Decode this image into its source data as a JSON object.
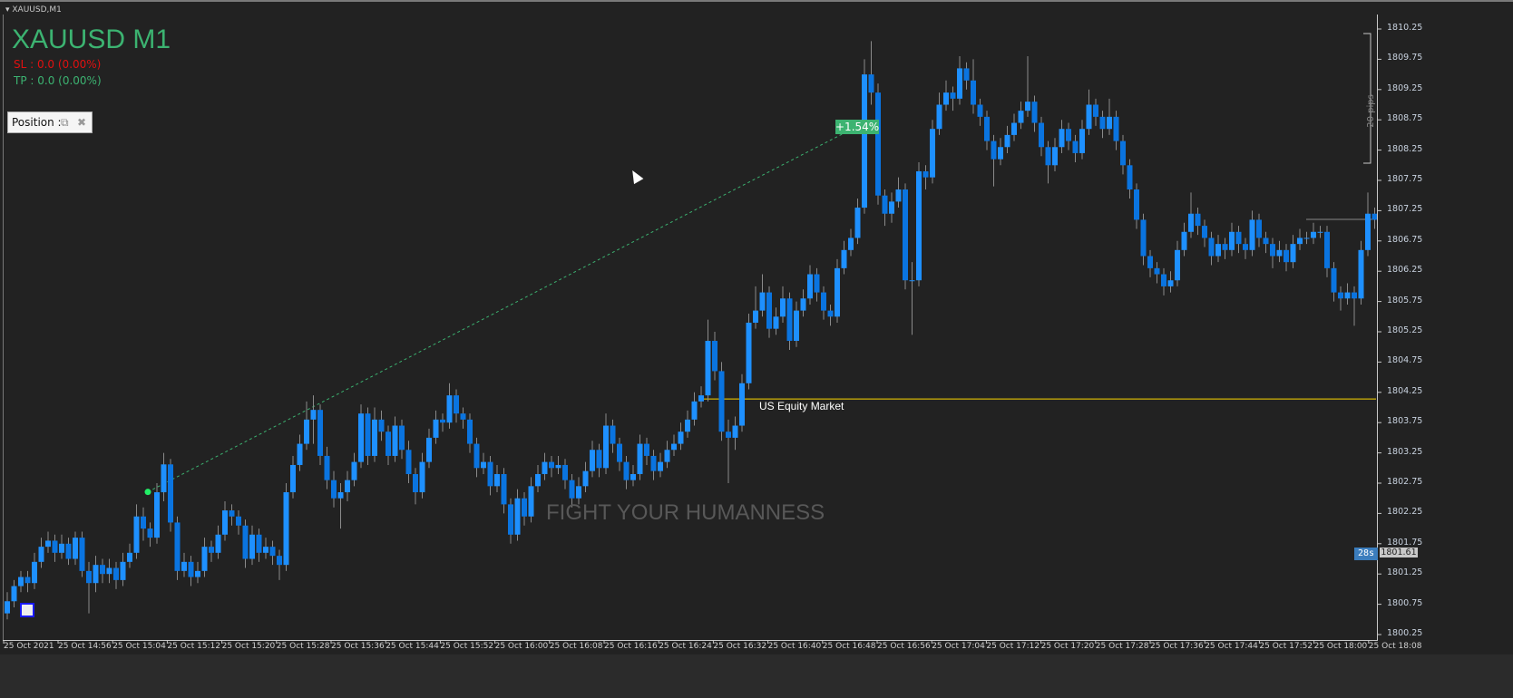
{
  "window": {
    "title": "XAUUSD,M1"
  },
  "overlay": {
    "symbol_title": "XAUUSD M1",
    "sl_text": "SL : 0.0 (0.00%)",
    "tp_text": "TP : 0.0 (0.00%)",
    "position_panel_label": "Position :",
    "watermark": "FIGHT YOUR HUMANNESS",
    "trade_change_label": "+1.54%",
    "pips_ruler_label": "20 pips",
    "countdown_badge": "28s",
    "price_tag": "1801.61",
    "equity_line_label": "US Equity Market"
  },
  "colors": {
    "background": "#222222",
    "bull": "#1e90ff",
    "bear": "#0a74e0",
    "wick": "#8a8a8a",
    "equity_line": "#ffd700",
    "trade_line": "#3cb371",
    "sl": "#e01010",
    "tp": "#3cb371"
  },
  "chart_data": {
    "type": "candlestick",
    "symbol": "XAUUSD",
    "timeframe": "M1",
    "ylim": [
      1800.25,
      1810.25
    ],
    "y_ticks": [
      "1810.25",
      "1809.75",
      "1809.25",
      "1808.75",
      "1808.25",
      "1807.75",
      "1807.25",
      "1806.75",
      "1806.25",
      "1805.75",
      "1805.25",
      "1804.75",
      "1804.25",
      "1803.75",
      "1803.25",
      "1802.75",
      "1802.25",
      "1801.75",
      "1801.25",
      "1800.75",
      "1800.25"
    ],
    "x_ticks": [
      "25 Oct 2021",
      "25 Oct 14:56",
      "25 Oct 15:04",
      "25 Oct 15:12",
      "25 Oct 15:20",
      "25 Oct 15:28",
      "25 Oct 15:36",
      "25 Oct 15:44",
      "25 Oct 15:52",
      "25 Oct 16:00",
      "25 Oct 16:08",
      "25 Oct 16:16",
      "25 Oct 16:24",
      "25 Oct 16:32",
      "25 Oct 16:40",
      "25 Oct 16:48",
      "25 Oct 16:56",
      "25 Oct 17:04",
      "25 Oct 17:12",
      "25 Oct 17:20",
      "25 Oct 17:28",
      "25 Oct 17:36",
      "25 Oct 17:44",
      "25 Oct 17:52",
      "25 Oct 18:00",
      "25 Oct 18:08"
    ],
    "equity_market_level": 1804.14,
    "trade_line": {
      "from_price": 1802.65,
      "to_price": 1808.7
    },
    "ohlc": [
      [
        1800.6,
        1800.95,
        1800.5,
        1800.8
      ],
      [
        1800.8,
        1801.15,
        1800.7,
        1801.05
      ],
      [
        1801.05,
        1801.3,
        1800.95,
        1801.2
      ],
      [
        1801.2,
        1801.3,
        1800.95,
        1801.1
      ],
      [
        1801.1,
        1801.6,
        1801.0,
        1801.45
      ],
      [
        1801.45,
        1801.85,
        1801.35,
        1801.7
      ],
      [
        1801.7,
        1801.95,
        1801.6,
        1801.8
      ],
      [
        1801.8,
        1801.9,
        1801.45,
        1801.6
      ],
      [
        1801.6,
        1801.9,
        1801.5,
        1801.75
      ],
      [
        1801.75,
        1801.85,
        1801.4,
        1801.5
      ],
      [
        1801.5,
        1801.95,
        1801.4,
        1801.85
      ],
      [
        1801.85,
        1801.95,
        1801.2,
        1801.3
      ],
      [
        1801.3,
        1801.45,
        1800.6,
        1801.1
      ],
      [
        1801.1,
        1801.55,
        1800.95,
        1801.4
      ],
      [
        1801.4,
        1801.5,
        1801.1,
        1801.25
      ],
      [
        1801.25,
        1801.5,
        1801.1,
        1801.35
      ],
      [
        1801.35,
        1801.45,
        1801.0,
        1801.15
      ],
      [
        1801.15,
        1801.6,
        1801.05,
        1801.45
      ],
      [
        1801.45,
        1801.75,
        1801.35,
        1801.6
      ],
      [
        1801.6,
        1802.4,
        1801.5,
        1802.2
      ],
      [
        1802.2,
        1802.35,
        1801.8,
        1802.0
      ],
      [
        1802.0,
        1802.1,
        1801.7,
        1801.85
      ],
      [
        1801.85,
        1802.75,
        1801.75,
        1802.6
      ],
      [
        1802.6,
        1803.25,
        1802.45,
        1803.06
      ],
      [
        1803.06,
        1803.15,
        1801.95,
        1802.1
      ],
      [
        1802.1,
        1802.2,
        1801.15,
        1801.3
      ],
      [
        1801.3,
        1801.6,
        1801.2,
        1801.45
      ],
      [
        1801.45,
        1801.55,
        1801.05,
        1801.2
      ],
      [
        1801.2,
        1801.45,
        1801.1,
        1801.3
      ],
      [
        1801.3,
        1801.85,
        1801.2,
        1801.7
      ],
      [
        1801.7,
        1801.8,
        1801.45,
        1801.6
      ],
      [
        1801.6,
        1802.05,
        1801.5,
        1801.9
      ],
      [
        1801.9,
        1802.45,
        1801.8,
        1802.3
      ],
      [
        1802.3,
        1802.4,
        1802.05,
        1802.2
      ],
      [
        1802.2,
        1802.3,
        1801.9,
        1802.05
      ],
      [
        1802.05,
        1802.15,
        1801.35,
        1801.5
      ],
      [
        1801.5,
        1802.05,
        1801.4,
        1801.9
      ],
      [
        1801.9,
        1802.0,
        1801.45,
        1801.6
      ],
      [
        1801.6,
        1801.85,
        1801.5,
        1801.7
      ],
      [
        1801.7,
        1801.8,
        1801.4,
        1801.55
      ],
      [
        1801.55,
        1801.65,
        1801.15,
        1801.4
      ],
      [
        1801.4,
        1802.75,
        1801.3,
        1802.6
      ],
      [
        1802.6,
        1803.2,
        1802.5,
        1803.05
      ],
      [
        1803.05,
        1803.55,
        1802.95,
        1803.4
      ],
      [
        1803.4,
        1804.1,
        1803.3,
        1803.8
      ],
      [
        1803.8,
        1804.2,
        1803.4,
        1803.96
      ],
      [
        1803.96,
        1804.05,
        1803.05,
        1803.2
      ],
      [
        1803.2,
        1803.35,
        1802.65,
        1802.8
      ],
      [
        1802.8,
        1802.95,
        1802.35,
        1802.5
      ],
      [
        1802.5,
        1802.75,
        1802.0,
        1802.6
      ],
      [
        1802.6,
        1802.95,
        1802.45,
        1802.8
      ],
      [
        1802.8,
        1803.25,
        1802.7,
        1803.1
      ],
      [
        1803.1,
        1804.05,
        1803.0,
        1803.9
      ],
      [
        1803.9,
        1804.0,
        1803.05,
        1803.2
      ],
      [
        1803.2,
        1804.0,
        1803.1,
        1803.8
      ],
      [
        1803.8,
        1803.95,
        1803.45,
        1803.6
      ],
      [
        1803.6,
        1803.7,
        1803.05,
        1803.2
      ],
      [
        1803.2,
        1803.85,
        1803.1,
        1803.7
      ],
      [
        1803.7,
        1803.8,
        1803.15,
        1803.3
      ],
      [
        1803.3,
        1803.45,
        1802.75,
        1802.9
      ],
      [
        1802.9,
        1803.0,
        1802.4,
        1802.6
      ],
      [
        1802.6,
        1803.25,
        1802.5,
        1803.1
      ],
      [
        1803.1,
        1803.65,
        1803.0,
        1803.5
      ],
      [
        1803.5,
        1803.95,
        1803.4,
        1803.8
      ],
      [
        1803.8,
        1803.9,
        1803.6,
        1803.75
      ],
      [
        1803.75,
        1804.4,
        1803.65,
        1804.2
      ],
      [
        1804.2,
        1804.3,
        1803.75,
        1803.9
      ],
      [
        1803.9,
        1804.0,
        1803.65,
        1803.8
      ],
      [
        1803.8,
        1803.9,
        1803.25,
        1803.4
      ],
      [
        1803.4,
        1803.5,
        1802.85,
        1803.0
      ],
      [
        1803.0,
        1803.25,
        1802.9,
        1803.1
      ],
      [
        1803.1,
        1803.2,
        1802.55,
        1802.7
      ],
      [
        1802.7,
        1803.05,
        1802.6,
        1802.9
      ],
      [
        1802.9,
        1803.0,
        1802.25,
        1802.4
      ],
      [
        1802.4,
        1802.5,
        1801.75,
        1801.9
      ],
      [
        1801.9,
        1802.65,
        1801.8,
        1802.5
      ],
      [
        1802.5,
        1802.6,
        1802.05,
        1802.2
      ],
      [
        1802.2,
        1802.85,
        1802.1,
        1802.7
      ],
      [
        1802.7,
        1803.05,
        1802.6,
        1802.9
      ],
      [
        1802.9,
        1803.25,
        1802.8,
        1803.1
      ],
      [
        1803.1,
        1803.2,
        1802.85,
        1803.0
      ],
      [
        1803.0,
        1803.2,
        1802.9,
        1803.05
      ],
      [
        1803.05,
        1803.15,
        1802.65,
        1802.8
      ],
      [
        1802.8,
        1802.9,
        1802.35,
        1802.5
      ],
      [
        1802.5,
        1802.85,
        1802.4,
        1802.7
      ],
      [
        1802.7,
        1803.1,
        1802.6,
        1802.95
      ],
      [
        1802.95,
        1803.45,
        1802.85,
        1803.3
      ],
      [
        1803.3,
        1803.4,
        1802.85,
        1803.0
      ],
      [
        1803.0,
        1803.9,
        1802.9,
        1803.7
      ],
      [
        1803.7,
        1803.8,
        1803.25,
        1803.4
      ],
      [
        1803.4,
        1803.5,
        1802.95,
        1803.1
      ],
      [
        1803.1,
        1803.2,
        1802.65,
        1802.8
      ],
      [
        1802.8,
        1803.05,
        1802.7,
        1802.9
      ],
      [
        1802.9,
        1803.55,
        1802.8,
        1803.4
      ],
      [
        1803.4,
        1803.5,
        1803.05,
        1803.2
      ],
      [
        1803.2,
        1803.3,
        1802.8,
        1802.95
      ],
      [
        1802.95,
        1803.25,
        1802.85,
        1803.1
      ],
      [
        1803.1,
        1803.45,
        1803.0,
        1803.3
      ],
      [
        1803.3,
        1803.55,
        1803.2,
        1803.4
      ],
      [
        1803.4,
        1803.75,
        1803.3,
        1803.6
      ],
      [
        1803.6,
        1803.95,
        1803.5,
        1803.8
      ],
      [
        1803.8,
        1804.25,
        1803.7,
        1804.1
      ],
      [
        1804.1,
        1804.35,
        1804.0,
        1804.2
      ],
      [
        1804.2,
        1805.45,
        1804.1,
        1805.1
      ],
      [
        1805.1,
        1805.25,
        1804.45,
        1804.6
      ],
      [
        1804.6,
        1804.75,
        1803.45,
        1803.6
      ],
      [
        1803.6,
        1803.8,
        1802.75,
        1803.5
      ],
      [
        1803.5,
        1803.85,
        1803.3,
        1803.7
      ],
      [
        1803.7,
        1804.55,
        1803.6,
        1804.4
      ],
      [
        1804.4,
        1805.55,
        1804.3,
        1805.4
      ],
      [
        1805.4,
        1806.0,
        1805.3,
        1805.6
      ],
      [
        1805.6,
        1806.2,
        1805.5,
        1805.9
      ],
      [
        1805.9,
        1806.0,
        1805.15,
        1805.3
      ],
      [
        1805.3,
        1805.65,
        1805.2,
        1805.5
      ],
      [
        1805.5,
        1806.0,
        1805.4,
        1805.8
      ],
      [
        1805.8,
        1805.9,
        1804.95,
        1805.1
      ],
      [
        1805.1,
        1805.75,
        1805.0,
        1805.6
      ],
      [
        1805.6,
        1805.95,
        1805.5,
        1805.8
      ],
      [
        1805.8,
        1806.35,
        1805.7,
        1806.2
      ],
      [
        1806.2,
        1806.3,
        1805.75,
        1805.9
      ],
      [
        1805.9,
        1806.0,
        1805.45,
        1805.6
      ],
      [
        1805.6,
        1805.7,
        1805.35,
        1805.5
      ],
      [
        1805.5,
        1806.45,
        1805.4,
        1806.3
      ],
      [
        1806.3,
        1806.75,
        1806.2,
        1806.6
      ],
      [
        1806.6,
        1806.95,
        1806.5,
        1806.8
      ],
      [
        1806.8,
        1807.45,
        1806.7,
        1807.3
      ],
      [
        1807.3,
        1809.75,
        1807.2,
        1809.5
      ],
      [
        1809.5,
        1810.05,
        1809.0,
        1809.2
      ],
      [
        1809.2,
        1809.35,
        1807.35,
        1807.5
      ],
      [
        1807.5,
        1807.6,
        1807.0,
        1807.2
      ],
      [
        1807.2,
        1807.55,
        1807.05,
        1807.4
      ],
      [
        1807.4,
        1807.8,
        1807.3,
        1807.6
      ],
      [
        1807.6,
        1807.7,
        1805.95,
        1806.1
      ],
      [
        1806.1,
        1806.4,
        1805.2,
        1806.1
      ],
      [
        1806.1,
        1808.05,
        1806.0,
        1807.9
      ],
      [
        1807.9,
        1808.0,
        1807.6,
        1807.8
      ],
      [
        1807.8,
        1808.75,
        1807.7,
        1808.6
      ],
      [
        1808.6,
        1809.2,
        1808.5,
        1809.0
      ],
      [
        1809.0,
        1809.4,
        1808.9,
        1809.2
      ],
      [
        1809.2,
        1809.3,
        1808.9,
        1809.1
      ],
      [
        1809.1,
        1809.8,
        1809.0,
        1809.6
      ],
      [
        1809.6,
        1809.7,
        1809.25,
        1809.4
      ],
      [
        1809.4,
        1809.75,
        1808.85,
        1809.0
      ],
      [
        1809.0,
        1809.1,
        1808.65,
        1808.8
      ],
      [
        1808.8,
        1808.9,
        1808.25,
        1808.4
      ],
      [
        1808.4,
        1808.5,
        1807.65,
        1808.1
      ],
      [
        1808.1,
        1808.45,
        1808.0,
        1808.3
      ],
      [
        1808.3,
        1808.65,
        1808.2,
        1808.5
      ],
      [
        1808.5,
        1808.85,
        1808.4,
        1808.7
      ],
      [
        1808.7,
        1809.05,
        1808.6,
        1808.9
      ],
      [
        1808.9,
        1809.8,
        1808.8,
        1809.05
      ],
      [
        1809.05,
        1809.15,
        1808.55,
        1808.7
      ],
      [
        1808.7,
        1808.8,
        1808.15,
        1808.3
      ],
      [
        1808.3,
        1808.4,
        1807.7,
        1808.0
      ],
      [
        1808.0,
        1808.45,
        1807.9,
        1808.3
      ],
      [
        1808.3,
        1808.75,
        1808.2,
        1808.6
      ],
      [
        1808.6,
        1808.7,
        1808.25,
        1808.4
      ],
      [
        1808.4,
        1808.5,
        1808.05,
        1808.2
      ],
      [
        1808.2,
        1808.75,
        1808.1,
        1808.6
      ],
      [
        1808.6,
        1809.25,
        1808.5,
        1809.0
      ],
      [
        1809.0,
        1809.1,
        1808.65,
        1808.8
      ],
      [
        1808.8,
        1808.9,
        1808.45,
        1808.6
      ],
      [
        1808.6,
        1809.1,
        1808.5,
        1808.8
      ],
      [
        1808.8,
        1808.9,
        1808.25,
        1808.4
      ],
      [
        1808.4,
        1808.5,
        1807.85,
        1808.0
      ],
      [
        1808.0,
        1808.1,
        1807.45,
        1807.6
      ],
      [
        1807.6,
        1807.7,
        1806.95,
        1807.1
      ],
      [
        1807.1,
        1807.2,
        1806.35,
        1806.5
      ],
      [
        1806.5,
        1806.6,
        1806.15,
        1806.3
      ],
      [
        1806.3,
        1806.4,
        1806.05,
        1806.2
      ],
      [
        1806.2,
        1806.3,
        1805.85,
        1806.0
      ],
      [
        1806.0,
        1806.25,
        1805.9,
        1806.1
      ],
      [
        1806.1,
        1806.75,
        1806.0,
        1806.6
      ],
      [
        1806.6,
        1807.05,
        1806.5,
        1806.9
      ],
      [
        1806.9,
        1807.55,
        1806.8,
        1807.2
      ],
      [
        1807.2,
        1807.3,
        1806.85,
        1807.0
      ],
      [
        1807.0,
        1807.1,
        1806.65,
        1806.8
      ],
      [
        1806.8,
        1806.9,
        1806.35,
        1806.5
      ],
      [
        1806.5,
        1806.85,
        1806.4,
        1806.7
      ],
      [
        1806.7,
        1806.8,
        1806.45,
        1806.6
      ],
      [
        1806.6,
        1807.05,
        1806.5,
        1806.9
      ],
      [
        1806.9,
        1807.0,
        1806.55,
        1806.7
      ],
      [
        1806.7,
        1806.8,
        1806.45,
        1806.6
      ],
      [
        1806.6,
        1807.25,
        1806.5,
        1807.1
      ],
      [
        1807.1,
        1807.2,
        1806.65,
        1806.8
      ],
      [
        1806.8,
        1806.9,
        1806.55,
        1806.7
      ],
      [
        1806.7,
        1806.8,
        1806.3,
        1806.5
      ],
      [
        1806.5,
        1806.75,
        1806.4,
        1806.6
      ],
      [
        1806.6,
        1806.7,
        1806.25,
        1806.4
      ],
      [
        1806.4,
        1806.85,
        1806.3,
        1806.7
      ],
      [
        1806.7,
        1806.95,
        1806.6,
        1806.8
      ],
      [
        1806.8,
        1806.9,
        1806.7,
        1806.8
      ],
      [
        1806.8,
        1807.05,
        1806.7,
        1806.9
      ],
      [
        1806.9,
        1807.0,
        1806.8,
        1806.9
      ],
      [
        1806.9,
        1807.0,
        1806.15,
        1806.3
      ],
      [
        1806.3,
        1806.4,
        1805.75,
        1805.9
      ],
      [
        1805.9,
        1806.0,
        1805.6,
        1805.8
      ],
      [
        1805.8,
        1806.05,
        1805.7,
        1805.9
      ],
      [
        1805.9,
        1806.0,
        1805.35,
        1805.8
      ],
      [
        1805.8,
        1806.75,
        1805.7,
        1806.6
      ],
      [
        1806.6,
        1807.55,
        1806.5,
        1807.2
      ],
      [
        1807.2,
        1807.3,
        1806.95,
        1807.1
      ]
    ]
  }
}
